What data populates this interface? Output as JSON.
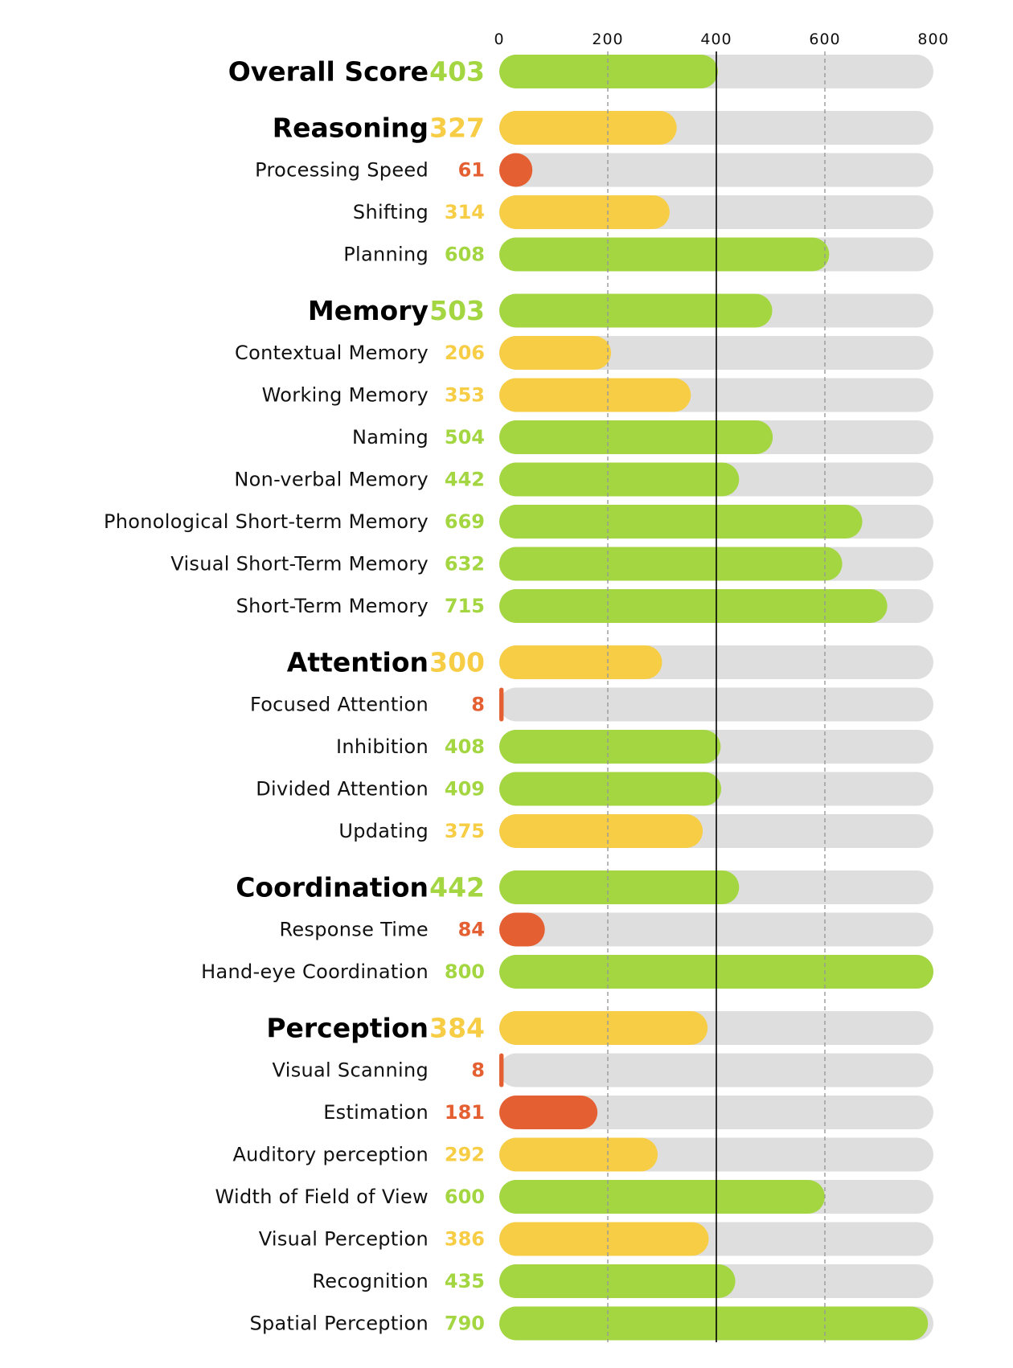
{
  "chart_data": {
    "type": "bar",
    "orientation": "horizontal",
    "xlim": [
      0,
      800
    ],
    "ticks": [
      0,
      200,
      400,
      600,
      800
    ],
    "tick_labels": [
      "0",
      "200",
      "400",
      "600",
      "800"
    ],
    "reference_line": 400,
    "colors": {
      "good": "#a3d641",
      "medium": "#f7cd45",
      "low": "#e46032",
      "track": "#dedede",
      "dashed_grid": "#999999",
      "reference": "#000000"
    },
    "rows": [
      {
        "label": "Overall Score",
        "value": 403,
        "level": "main",
        "status": "good"
      },
      {
        "label": "Reasoning",
        "value": 327,
        "level": "main",
        "status": "medium"
      },
      {
        "label": "Processing Speed",
        "value": 61,
        "level": "sub",
        "status": "low"
      },
      {
        "label": "Shifting",
        "value": 314,
        "level": "sub",
        "status": "medium"
      },
      {
        "label": "Planning",
        "value": 608,
        "level": "sub",
        "status": "good"
      },
      {
        "label": "Memory",
        "value": 503,
        "level": "main",
        "status": "good"
      },
      {
        "label": "Contextual Memory",
        "value": 206,
        "level": "sub",
        "status": "medium"
      },
      {
        "label": "Working Memory",
        "value": 353,
        "level": "sub",
        "status": "medium"
      },
      {
        "label": "Naming",
        "value": 504,
        "level": "sub",
        "status": "good"
      },
      {
        "label": "Non-verbal Memory",
        "value": 442,
        "level": "sub",
        "status": "good"
      },
      {
        "label": "Phonological Short-term Memory",
        "value": 669,
        "level": "sub",
        "status": "good"
      },
      {
        "label": "Visual Short-Term Memory",
        "value": 632,
        "level": "sub",
        "status": "good"
      },
      {
        "label": "Short-Term Memory",
        "value": 715,
        "level": "sub",
        "status": "good"
      },
      {
        "label": "Attention",
        "value": 300,
        "level": "main",
        "status": "medium"
      },
      {
        "label": "Focused Attention",
        "value": 8,
        "level": "sub",
        "status": "low"
      },
      {
        "label": "Inhibition",
        "value": 408,
        "level": "sub",
        "status": "good"
      },
      {
        "label": "Divided Attention",
        "value": 409,
        "level": "sub",
        "status": "good"
      },
      {
        "label": "Updating",
        "value": 375,
        "level": "sub",
        "status": "medium"
      },
      {
        "label": "Coordination",
        "value": 442,
        "level": "main",
        "status": "good"
      },
      {
        "label": "Response Time",
        "value": 84,
        "level": "sub",
        "status": "low"
      },
      {
        "label": "Hand-eye Coordination",
        "value": 800,
        "level": "sub",
        "status": "good"
      },
      {
        "label": "Perception",
        "value": 384,
        "level": "main",
        "status": "medium"
      },
      {
        "label": "Visual Scanning",
        "value": 8,
        "level": "sub",
        "status": "low"
      },
      {
        "label": "Estimation",
        "value": 181,
        "level": "sub",
        "status": "low"
      },
      {
        "label": "Auditory perception",
        "value": 292,
        "level": "sub",
        "status": "medium"
      },
      {
        "label": "Width of Field of View",
        "value": 600,
        "level": "sub",
        "status": "good"
      },
      {
        "label": "Visual Perception",
        "value": 386,
        "level": "sub",
        "status": "medium"
      },
      {
        "label": "Recognition",
        "value": 435,
        "level": "sub",
        "status": "good"
      },
      {
        "label": "Spatial Perception",
        "value": 790,
        "level": "sub",
        "status": "good"
      }
    ]
  }
}
